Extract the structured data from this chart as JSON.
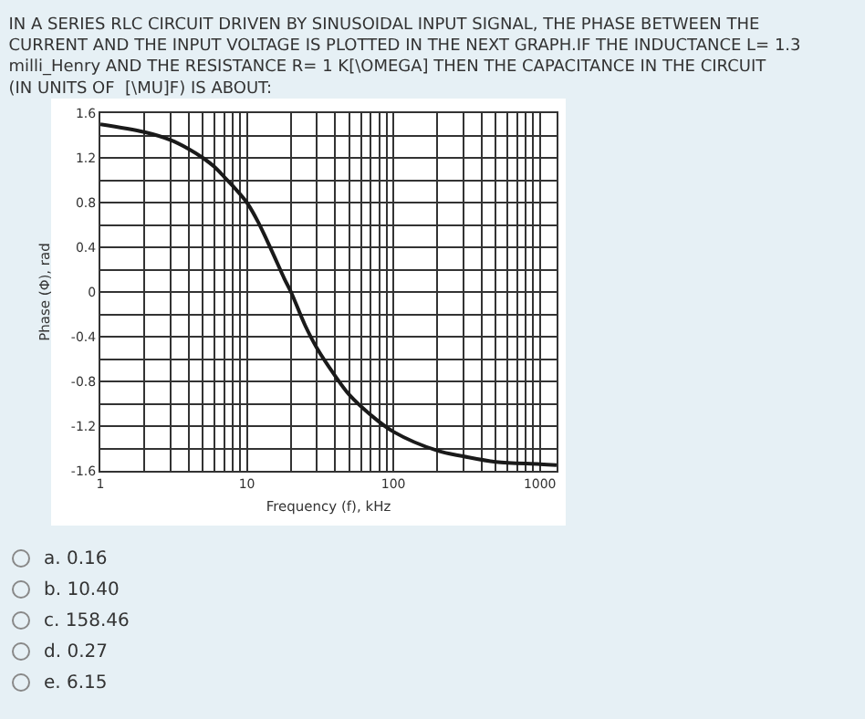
{
  "chart_data": {
    "type": "line",
    "title": "IN A SERIES RLC CIRCUIT DRIVEN BY SINUSOIDAL INPUT SIGNAL, THE PHASE BETWEEN THE CURRENT AND THE INPUT VOLTAGE IS PLOTTED IN THE NEXT GRAPH.IF THE INDUCTANCE L= 1.3 milli_Henry AND THE RESISTANCE R= 1 K[\\OMEGA] THEN THE CAPACITANCE IN THE CIRCUIT (IN UNITS OF  [\\MU]F) IS ABOUT:",
    "xlabel": "Frequency (f), kHz",
    "ylabel": "Phase (Φ), rad",
    "log": "x",
    "grid": true,
    "marker": "none",
    "line_style": "solid",
    "x": [
      1,
      2,
      3,
      4,
      5,
      6,
      7,
      8,
      10,
      12,
      15,
      18,
      20,
      25,
      30,
      40,
      50,
      70,
      100,
      200,
      300,
      500,
      1000,
      1300
    ],
    "series": [
      {
        "color": "#1a1a1a",
        "values": [
          1.5,
          1.43,
          1.36,
          1.28,
          1.2,
          1.12,
          1.03,
          0.95,
          0.8,
          0.62,
          0.35,
          0.12,
          0.0,
          -0.3,
          -0.5,
          -0.75,
          -0.92,
          -1.1,
          -1.25,
          -1.42,
          -1.47,
          -1.52,
          -1.54,
          -1.55
        ]
      }
    ],
    "xlim": [
      1,
      1300
    ],
    "xticks": [
      1,
      {
        "value": 2,
        "label": null
      },
      {
        "value": 3,
        "label": null
      },
      {
        "value": 4,
        "label": null
      },
      {
        "value": 5,
        "label": null
      },
      {
        "value": 6,
        "label": null
      },
      {
        "value": 7,
        "label": null
      },
      {
        "value": 8,
        "label": null
      },
      {
        "value": 9,
        "label": null
      },
      10,
      {
        "value": 20,
        "label": null
      },
      {
        "value": 30,
        "label": null
      },
      {
        "value": 40,
        "label": null
      },
      {
        "value": 50,
        "label": null
      },
      {
        "value": 60,
        "label": null
      },
      {
        "value": 70,
        "label": null
      },
      {
        "value": 80,
        "label": null
      },
      {
        "value": 90,
        "label": null
      },
      100,
      {
        "value": 200,
        "label": null
      },
      {
        "value": 300,
        "label": null
      },
      {
        "value": 400,
        "label": null
      },
      {
        "value": 500,
        "label": null
      },
      {
        "value": 600,
        "label": null
      },
      {
        "value": 700,
        "label": null
      },
      {
        "value": 800,
        "label": null
      },
      {
        "value": 900,
        "label": null
      },
      1000
    ],
    "ylim": [
      -1.6,
      1.6
    ],
    "yticks": [
      -1.6,
      {
        "value": -1.4,
        "label": null
      },
      -1.2,
      {
        "value": -1.0,
        "label": null
      },
      -0.8,
      {
        "value": -0.6,
        "label": null
      },
      -0.4,
      {
        "value": -0.2,
        "label": null
      },
      0,
      {
        "value": 0.2,
        "label": null
      },
      0.4,
      {
        "value": 0.6,
        "label": null
      },
      0.8,
      {
        "value": 1.0,
        "label": null
      },
      1.2,
      {
        "value": 1.4,
        "label": null
      },
      1.6
    ],
    "annotations": [
      "a. 0.16",
      "b. 10.40",
      "c. 158.46",
      "d. 0.27",
      "e. 6.15"
    ]
  }
}
